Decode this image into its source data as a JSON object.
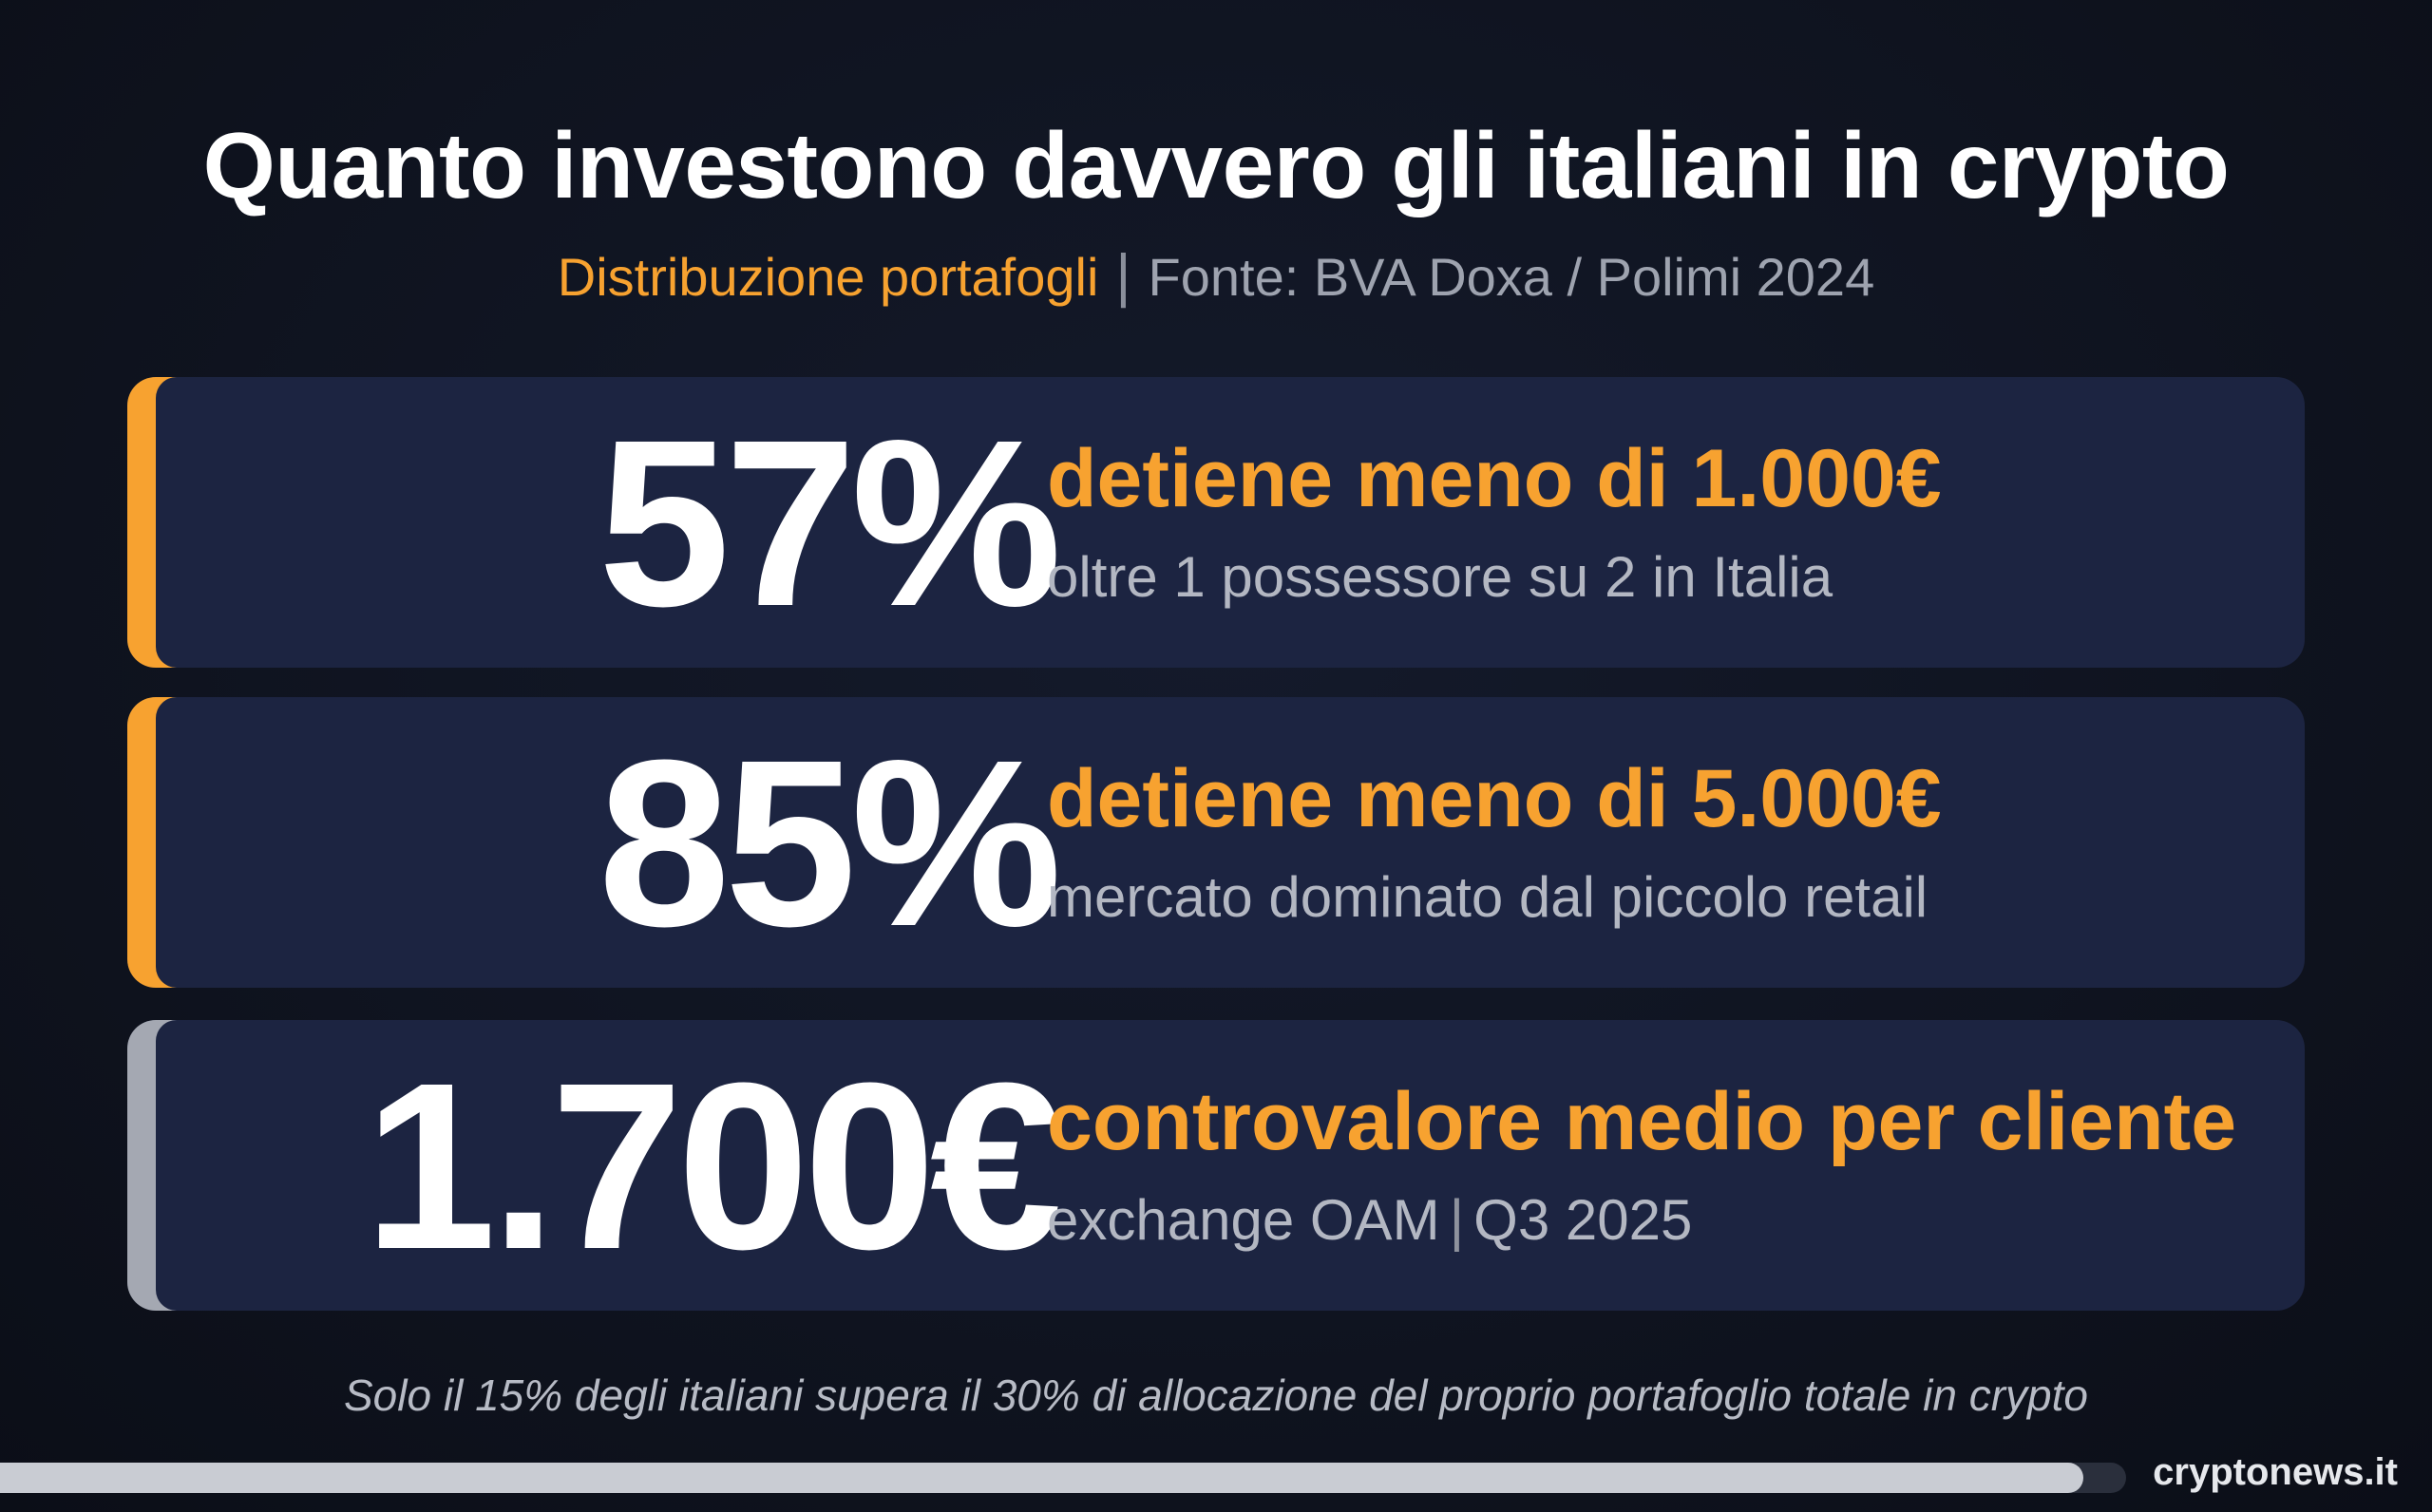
{
  "header": {
    "title": "Quanto investono davvero gli italiani in crypto",
    "subtitle_accent": "Distribuzione portafogli",
    "subtitle_separator": "|",
    "subtitle_source": "Fonte: BVA Doxa / Polimi 2024"
  },
  "stats": [
    {
      "value": "57%",
      "headline": "detiene meno di 1.000€",
      "detail": "oltre 1 possessore su 2 in Italia",
      "bar_color": "#f7a230"
    },
    {
      "value": "85%",
      "headline": "detiene meno di 5.000€",
      "detail": "mercato dominato dal piccolo retail",
      "bar_color": "#f7a230"
    },
    {
      "value": "1.700€",
      "headline": "controvalore medio per cliente",
      "detail_part1": "exchange OAM",
      "detail_separator": "|",
      "detail_part2": "Q3 2025",
      "bar_color": "#a4a8b2"
    }
  ],
  "footer": {
    "note": "Solo il 15% degli italiani supera il 30% di allocazione del proprio portafoglio totale in crypto",
    "brand": "cryptonews.it",
    "progress_fraction": 0.98
  },
  "colors": {
    "accent": "#f7a230",
    "background": "#0f1320",
    "card": "#1c2441",
    "neutral_bar": "#a4a8b2"
  }
}
